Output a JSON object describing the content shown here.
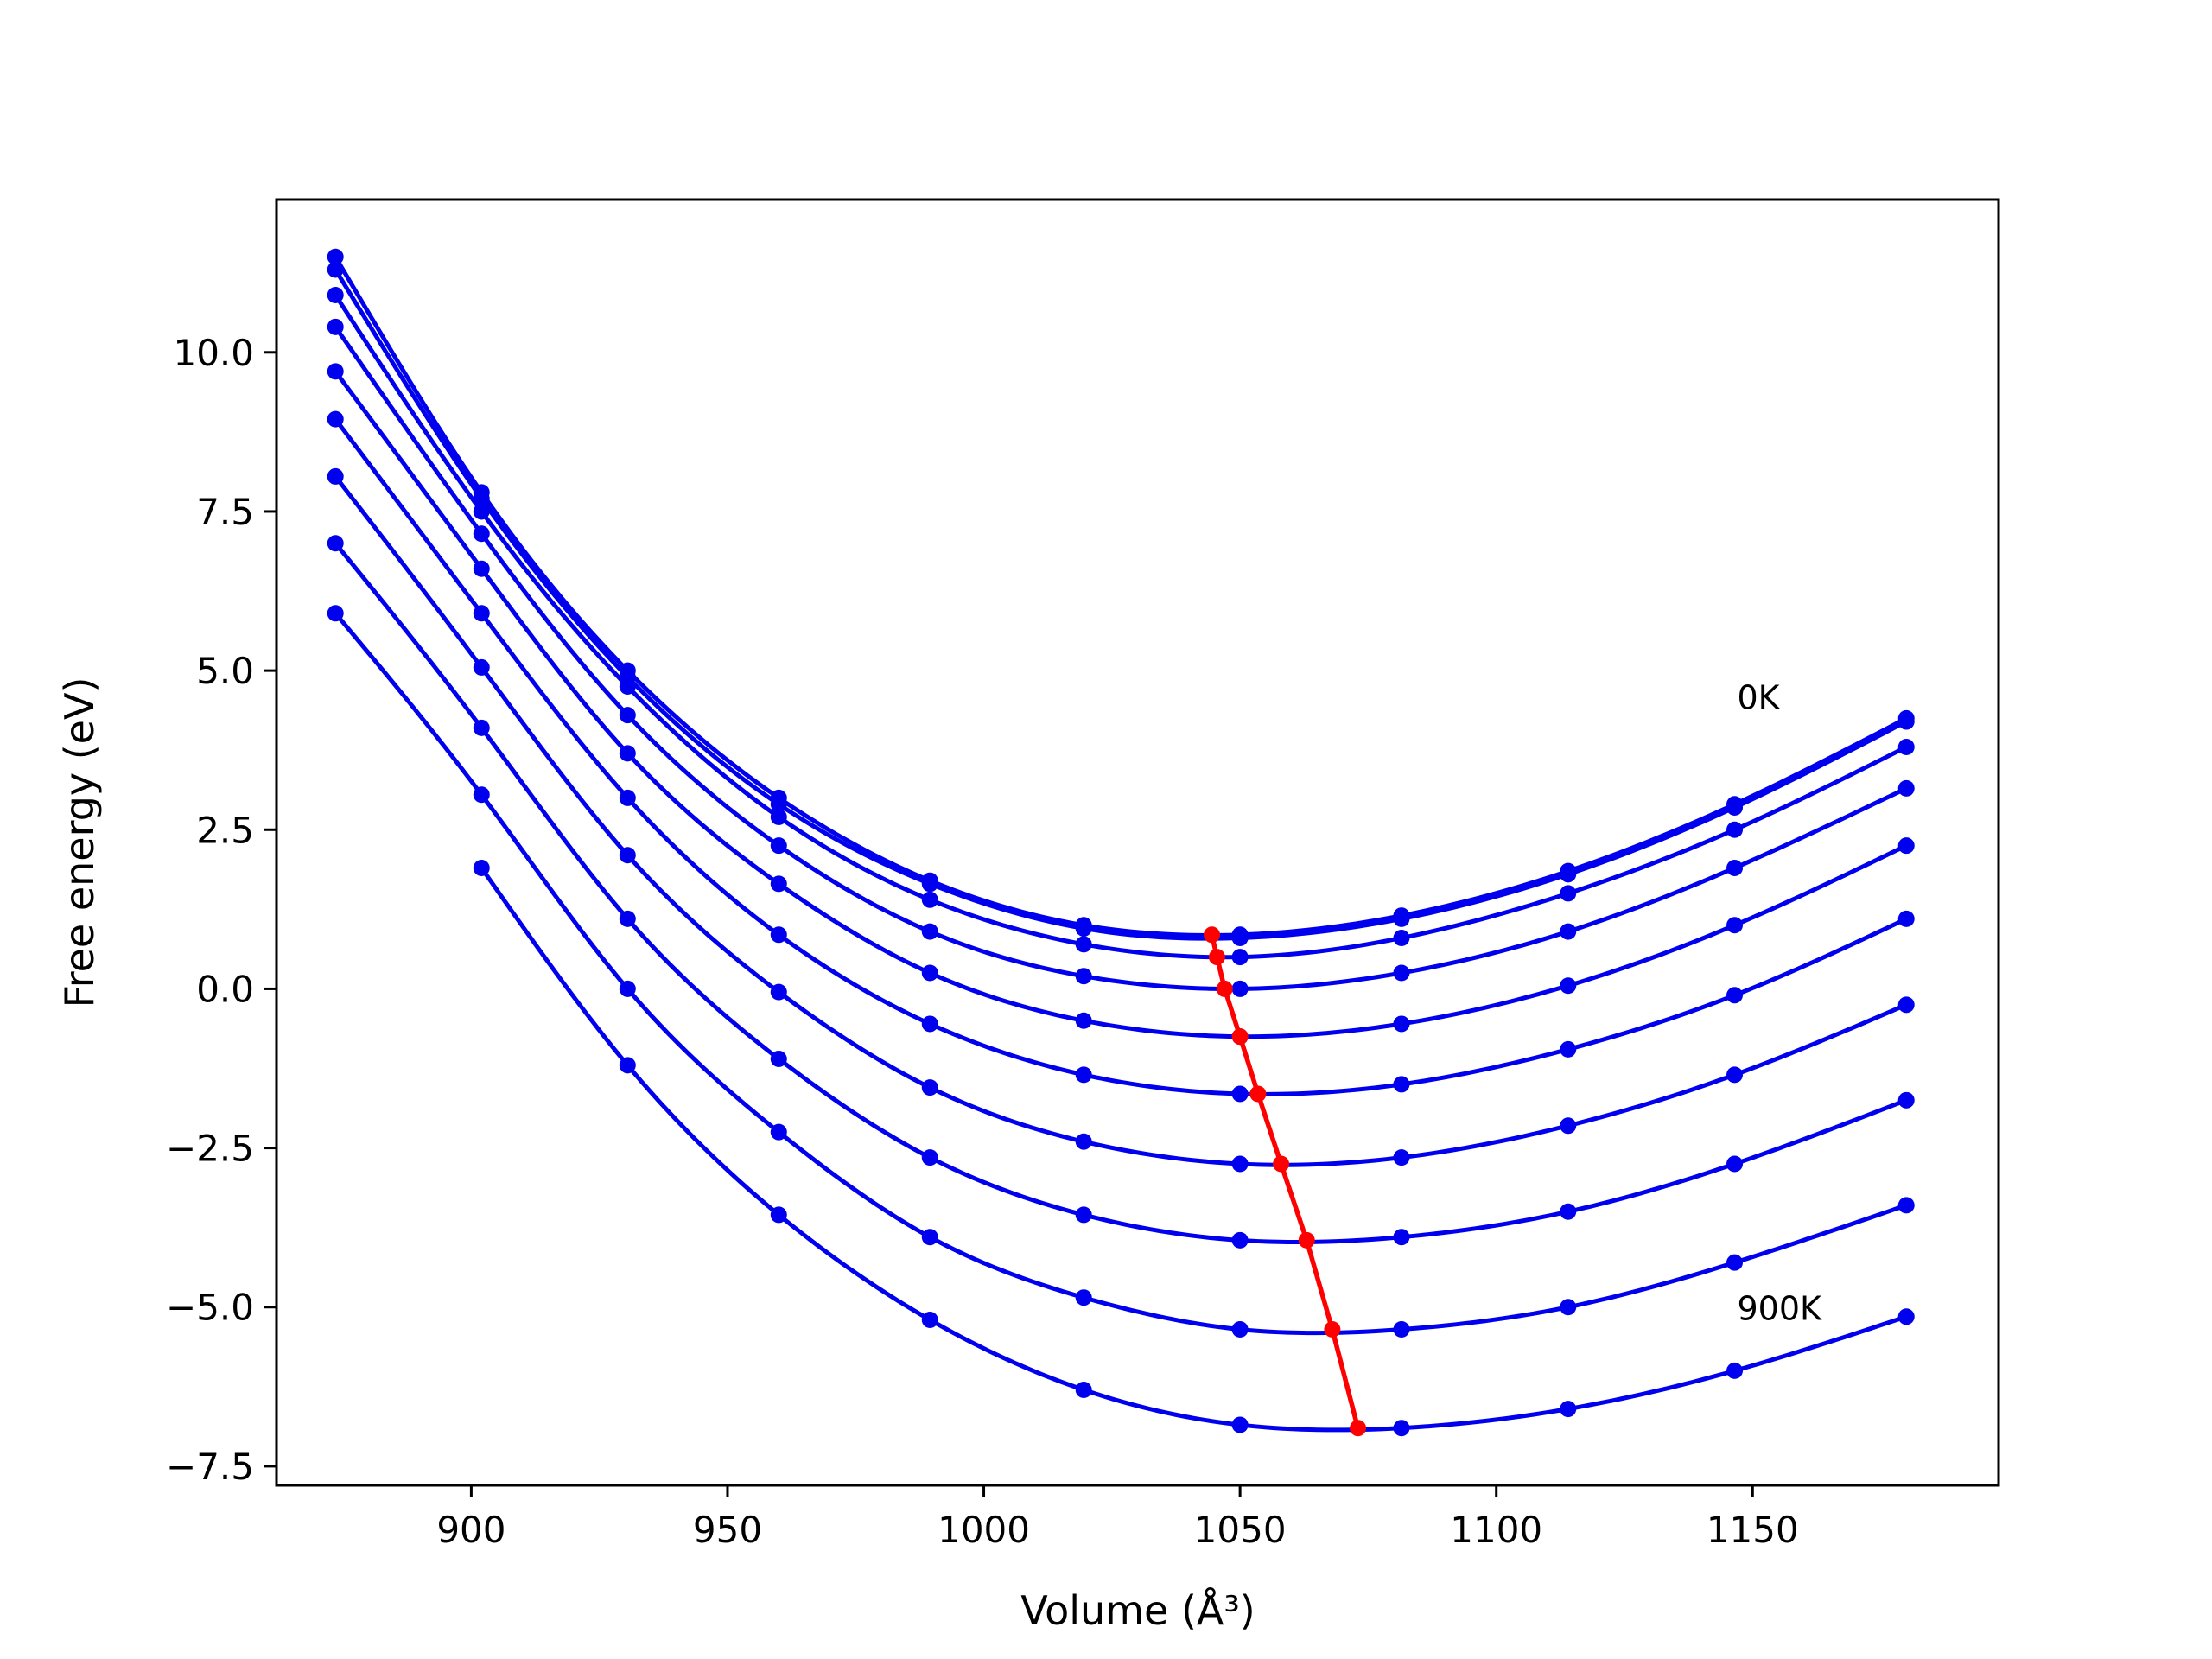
{
  "chart_data": {
    "type": "line",
    "title": "",
    "xlabel": "Volume (Å³)",
    "ylabel": "Free energy (eV)",
    "xlim": [
      862,
      1198
    ],
    "ylim": [
      -7.8,
      12.4
    ],
    "x_ticks": [
      900,
      950,
      1000,
      1050,
      1100,
      1150
    ],
    "y_ticks": [
      -7.5,
      -5.0,
      -2.5,
      0.0,
      2.5,
      5.0,
      7.5,
      10.0
    ],
    "x_tick_labels": [
      "900",
      "950",
      "1000",
      "1050",
      "1100",
      "1150"
    ],
    "y_tick_labels": [
      "−7.5",
      "−5.0",
      "−2.5",
      "0.0",
      "2.5",
      "5.0",
      "7.5",
      "10.0"
    ],
    "grid": false,
    "colors": {
      "curves": "#0000ee",
      "minima": "#ff0000"
    },
    "x": [
      873.5,
      902,
      930.5,
      960,
      989.5,
      1019.5,
      1050,
      1081.5,
      1114,
      1146.5,
      1180
    ],
    "series": [
      {
        "values": [
          11.5,
          7.8,
          5.0,
          3.0,
          1.7,
          1.0,
          0.85,
          1.15,
          1.85,
          2.9,
          4.25
        ]
      },
      {
        "values": [
          11.3,
          7.7,
          4.9,
          2.9,
          1.65,
          0.95,
          0.8,
          1.1,
          1.8,
          2.85,
          4.2
        ]
      },
      {
        "values": [
          10.9,
          7.5,
          4.75,
          2.7,
          1.4,
          0.7,
          0.5,
          0.8,
          1.5,
          2.5,
          3.8
        ]
      },
      {
        "values": [
          10.4,
          7.15,
          4.3,
          2.25,
          0.9,
          0.2,
          0.0,
          0.25,
          0.9,
          1.9,
          3.15
        ]
      },
      {
        "values": [
          9.7,
          6.6,
          3.7,
          1.65,
          0.25,
          -0.5,
          -0.75,
          -0.55,
          0.05,
          1.0,
          2.25
        ]
      },
      {
        "values": [
          8.95,
          5.9,
          3.0,
          0.85,
          -0.55,
          -1.35,
          -1.65,
          -1.5,
          -0.95,
          -0.1,
          1.1
        ]
      },
      {
        "values": [
          8.05,
          5.05,
          2.1,
          -0.05,
          -1.55,
          -2.4,
          -2.75,
          -2.65,
          -2.15,
          -1.35,
          -0.25
        ]
      },
      {
        "values": [
          7.0,
          4.1,
          1.1,
          -1.1,
          -2.65,
          -3.55,
          -3.95,
          -3.9,
          -3.5,
          -2.75,
          -1.75
        ]
      },
      {
        "values": [
          5.9,
          3.05,
          0.0,
          -2.25,
          -3.9,
          -4.85,
          -5.35,
          -5.35,
          -5.0,
          -4.3,
          -3.4
        ]
      },
      {
        "values": [
          null,
          1.9,
          -1.2,
          -3.55,
          -5.2,
          -6.3,
          -6.85,
          -6.9,
          -6.6,
          -6.0,
          -5.15
        ]
      }
    ],
    "minima": {
      "x": [
        1044.5,
        1045.5,
        1047,
        1050,
        1053.5,
        1058,
        1063,
        1068,
        1073
      ],
      "y": [
        0.85,
        0.5,
        0.0,
        -0.75,
        -1.65,
        -2.75,
        -3.95,
        -5.35,
        -6.9
      ]
    },
    "annotations": [
      {
        "text": "0K",
        "x": 1147,
        "y": 4.4
      },
      {
        "text": "900K",
        "x": 1147,
        "y": -5.2
      }
    ]
  }
}
